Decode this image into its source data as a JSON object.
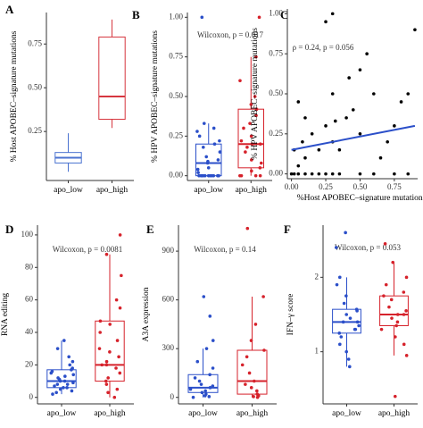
{
  "chart_data": [
    {
      "type": "box",
      "panel": "A",
      "ylabel": "% Host APOBEC–signature mutations",
      "categories": [
        "apo_low",
        "apo_high"
      ],
      "ylim": [
        -0.03,
        0.93
      ],
      "yticks": [
        0.25,
        {
          "value": 0.5,
          "label": "0.50"
        },
        0.75
      ],
      "boxes": [
        {
          "color": "#4a72d0",
          "min": 0.02,
          "q1": 0.07,
          "median": 0.1,
          "q3": 0.13,
          "max": 0.24,
          "points": []
        },
        {
          "color": "#d6363f",
          "min": 0.27,
          "q1": 0.32,
          "median": 0.45,
          "q3": 0.79,
          "max": 0.89,
          "points": []
        }
      ]
    },
    {
      "type": "box",
      "panel": "B",
      "ylabel": "% HPV APOBEC–signature mutations",
      "annotation": "Wilcoxon, p = 0.017",
      "categories": [
        "apo_low",
        "apo_high"
      ],
      "ylim": [
        -0.03,
        1.03
      ],
      "yticks": [
        {
          "value": 0,
          "label": "0.00"
        },
        0.25,
        {
          "value": 0.5,
          "label": "0.50"
        },
        0.75,
        {
          "value": 1,
          "label": "1.00"
        }
      ],
      "boxes": [
        {
          "color": "#2b4fc9",
          "min": 0,
          "q1": 0,
          "median": 0.08,
          "q3": 0.2,
          "max": 0.33,
          "points": [
            0,
            0,
            0,
            0,
            0,
            0,
            0,
            0,
            0,
            0,
            0,
            0,
            0.02,
            0.04,
            0.05,
            0.08,
            0.09,
            0.1,
            0.12,
            0.15,
            0.18,
            0.2,
            0.22,
            0.25,
            0.28,
            0.3,
            0.33,
            1.0
          ]
        },
        {
          "color": "#d6222b",
          "min": 0,
          "q1": 0.05,
          "median": 0.2,
          "q3": 0.42,
          "max": 0.75,
          "points": [
            0,
            0,
            0,
            0,
            0.03,
            0.05,
            0.08,
            0.1,
            0.15,
            0.18,
            0.2,
            0.2,
            0.22,
            0.25,
            0.3,
            0.33,
            0.38,
            0.42,
            0.45,
            0.5,
            0.6,
            0.75,
            1.0
          ]
        }
      ]
    },
    {
      "type": "scatter",
      "panel": "C",
      "ylabel": "% HPV APOBEC–signature mutations",
      "xlabel": "%Host APOBEC–signature mutations",
      "annotation": "ρ = 0.24, p = 0.056",
      "xlim": [
        -0.03,
        0.92
      ],
      "xticks": [
        {
          "value": 0,
          "label": "0.00"
        },
        0.25,
        {
          "value": 0.5,
          "label": "0.50"
        },
        0.75
      ],
      "ylim": [
        -0.03,
        1.03
      ],
      "yticks": [
        {
          "value": 0,
          "label": "0.00"
        },
        0.25,
        {
          "value": 0.5,
          "label": "0.50"
        },
        0.75,
        {
          "value": 1,
          "label": "1.00"
        }
      ],
      "color": "#000000",
      "fit_color": "#2b4fc9",
      "x": [
        0,
        0.02,
        0.05,
        0.1,
        0.15,
        0.2,
        0.25,
        0.3,
        0.35,
        0.5,
        0.6,
        0.75,
        0.85,
        0.05,
        0.1,
        0.02,
        0.08,
        0.15,
        0.2,
        0.25,
        0.3,
        0.32,
        0.4,
        0.45,
        0.1,
        0.05,
        0.3,
        0.5,
        0.55,
        0.42,
        0.6,
        0.7,
        0.75,
        0.8,
        0.85,
        0.25,
        0.3,
        0.9,
        0.65,
        0.5,
        0.35
      ],
      "y": [
        0,
        0,
        0,
        0,
        0,
        0,
        0,
        0,
        0,
        0,
        0,
        0,
        0,
        0.05,
        0.1,
        0.15,
        0.2,
        0.25,
        0.15,
        0.3,
        0.2,
        0.33,
        0.35,
        0.4,
        0.35,
        0.45,
        0.5,
        0.65,
        0.75,
        0.6,
        0.5,
        0.2,
        0.3,
        0.45,
        0.5,
        0.95,
        1.0,
        0.9,
        0.1,
        0.25,
        0.15
      ],
      "fit": {
        "x": [
          0,
          0.9
        ],
        "y": [
          0.15,
          0.3
        ]
      }
    },
    {
      "type": "box",
      "panel": "D",
      "ylabel": "RNA editing",
      "annotation": "Wilcoxon, p = 0.0081",
      "categories": [
        "apo_low",
        "apo_high"
      ],
      "ylim": [
        -4,
        106
      ],
      "yticks": [
        0,
        20,
        40,
        60,
        80,
        100
      ],
      "boxes": [
        {
          "color": "#2b4fc9",
          "min": 2,
          "q1": 6,
          "median": 10,
          "q3": 17,
          "max": 35,
          "points": [
            2,
            3,
            4,
            5,
            6,
            6,
            7,
            8,
            8,
            9,
            10,
            10,
            11,
            12,
            13,
            14,
            15,
            16,
            17,
            18,
            20,
            22,
            25,
            30,
            35
          ]
        },
        {
          "color": "#d6222b",
          "min": 0,
          "q1": 10,
          "median": 20,
          "q3": 47,
          "max": 88,
          "points": [
            0,
            3,
            5,
            8,
            10,
            12,
            15,
            18,
            20,
            20,
            22,
            25,
            28,
            30,
            35,
            40,
            45,
            47,
            55,
            60,
            75,
            88,
            100
          ]
        }
      ]
    },
    {
      "type": "box",
      "panel": "E",
      "ylabel": "A3A expression",
      "annotation": "Wilcoxon, p = 0.14",
      "categories": [
        "apo_low",
        "apo_high"
      ],
      "ylim": [
        -40,
        1060
      ],
      "yticks": [
        0,
        300,
        600,
        900
      ],
      "boxes": [
        {
          "color": "#2b4fc9",
          "min": 0,
          "q1": 30,
          "median": 60,
          "q3": 140,
          "max": 300,
          "points": [
            0,
            5,
            10,
            20,
            30,
            40,
            50,
            60,
            70,
            80,
            100,
            120,
            140,
            180,
            220,
            300,
            350,
            500,
            620
          ]
        },
        {
          "color": "#d6222b",
          "min": 0,
          "q1": 20,
          "median": 100,
          "q3": 290,
          "max": 620,
          "points": [
            0,
            5,
            10,
            20,
            40,
            60,
            80,
            100,
            150,
            200,
            250,
            290,
            350,
            450,
            620,
            1040
          ]
        }
      ]
    },
    {
      "type": "box",
      "panel": "F",
      "ylabel": "IFN–γ score",
      "annotation": "Wilcoxon, p = 0.053",
      "categories": [
        "apo_low",
        "apo_high"
      ],
      "ylim": [
        0.3,
        2.7
      ],
      "yticks": [
        1,
        2
      ],
      "boxes": [
        {
          "color": "#2b4fc9",
          "min": 0.8,
          "q1": 1.25,
          "median": 1.4,
          "q3": 1.57,
          "max": 2.0,
          "points": [
            0.8,
            0.9,
            1.0,
            1.1,
            1.2,
            1.25,
            1.3,
            1.3,
            1.35,
            1.4,
            1.4,
            1.45,
            1.5,
            1.55,
            1.57,
            1.65,
            1.75,
            1.9,
            2.0,
            2.4,
            2.6
          ]
        },
        {
          "color": "#d6222b",
          "min": 0.95,
          "q1": 1.35,
          "median": 1.5,
          "q3": 1.75,
          "max": 2.2,
          "points": [
            0.4,
            0.95,
            1.1,
            1.2,
            1.3,
            1.35,
            1.4,
            1.45,
            1.5,
            1.5,
            1.55,
            1.6,
            1.7,
            1.75,
            1.8,
            1.9,
            2.0,
            2.2,
            2.45
          ]
        }
      ]
    }
  ]
}
